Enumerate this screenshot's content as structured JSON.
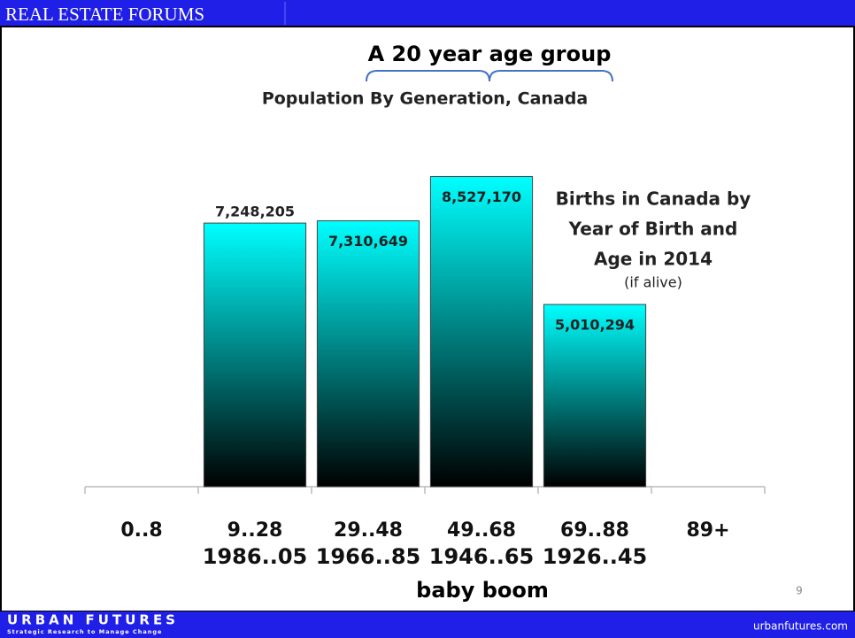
{
  "header": {
    "title": "REAL ESTATE FORUMS"
  },
  "footer": {
    "brand": "URBAN FUTURES",
    "tagline": "Strategic Research to Manage Change",
    "url": "urbanfutures.com",
    "page": "9"
  },
  "chart_data": {
    "type": "bar",
    "title": "Population By Generation, Canada",
    "annotations": {
      "bracket": "A 20 year age group",
      "side": [
        "Births in Canada by",
        "Year of Birth and",
        "Age in 2014"
      ],
      "side_note": "(if alive)",
      "boom": "baby boom"
    },
    "categories": [
      "0..8",
      "9..28",
      "29..48",
      "49..68",
      "69..88",
      "89+"
    ],
    "birth_years": [
      null,
      "1986..05",
      "1966..85",
      "1946..65",
      "1926..45",
      null
    ],
    "values": [
      null,
      7248205,
      7310649,
      8527170,
      5010294,
      null
    ],
    "value_labels": [
      null,
      "7,248,205",
      "7,310,649",
      "8,527,170",
      "5,010,294",
      null
    ],
    "color_top": "#00ffff",
    "color_bottom": "#000000",
    "ylim": [
      0,
      10000000
    ]
  }
}
